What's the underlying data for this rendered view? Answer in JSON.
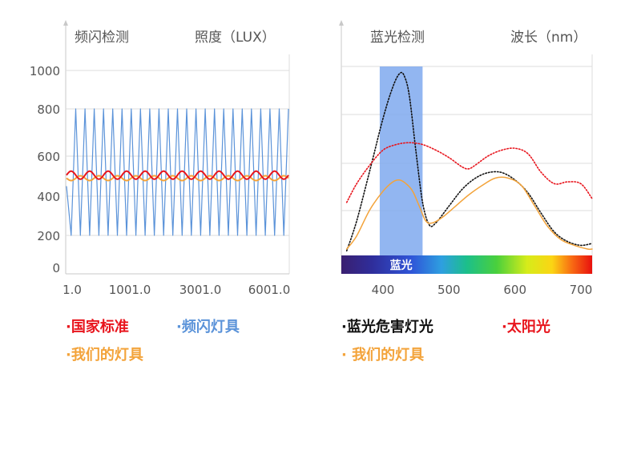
{
  "colors": {
    "standard": "#e8151d",
    "flicker_lamp": "#5b93d9",
    "our_lamp": "#f3a33a",
    "blue_hazard": "#111111",
    "sunlight": "#e8151d",
    "blue_band": "#7fa9ee",
    "axis": "#c8c8c8",
    "grid": "#dcdcdc",
    "label": "#555555"
  },
  "chart_data": [
    {
      "type": "line",
      "title": "频闪检测",
      "ylabel": "照度（LUX）",
      "x_tick_labels": [
        "1.0",
        "1001.0",
        "3001.0",
        "6001.0"
      ],
      "y_ticks": [
        0,
        200,
        400,
        600,
        800,
        1000
      ],
      "ylim": [
        0,
        1000
      ],
      "grid": true,
      "series": [
        {
          "name": "国家标准",
          "color_key": "standard",
          "style": "solid",
          "shape": "sine",
          "center": 505,
          "amplitude": 20,
          "cycles": 12
        },
        {
          "name": "频闪灯具",
          "color_key": "flicker_lamp",
          "style": "solid",
          "shape": "triangle",
          "min": 200,
          "max": 800,
          "cycles": 24
        },
        {
          "name": "我们的灯具",
          "color_key": "our_lamp",
          "style": "solid",
          "shape": "sine",
          "center": 490,
          "amplitude": 12,
          "cycles": 12
        }
      ],
      "legend": [
        {
          "label": "·国家标准",
          "color_key": "standard"
        },
        {
          "label": "·频闪灯具",
          "color_key": "flicker_lamp"
        },
        {
          "label": "·我们的灯具",
          "color_key": "our_lamp"
        }
      ]
    },
    {
      "type": "line",
      "title": "蓝光检测",
      "ylabel": "波长（nm）",
      "x_tick_labels": [
        "400",
        "500",
        "600",
        "700"
      ],
      "xlim": [
        340,
        720
      ],
      "ylim": [
        0,
        1
      ],
      "grid": true,
      "highlight_band": {
        "label": "蓝光",
        "x_start": 395,
        "x_end": 460
      },
      "spectrum_bar": true,
      "series": [
        {
          "name": "蓝光危害灯光",
          "color_key": "blue_hazard",
          "style": "dotted",
          "x": [
            345,
            360,
            380,
            400,
            415,
            425,
            432,
            440,
            450,
            460,
            470,
            480,
            500,
            520,
            540,
            560,
            580,
            600,
            620,
            640,
            660,
            680,
            700,
            720
          ],
          "y": [
            0.02,
            0.18,
            0.45,
            0.73,
            0.9,
            0.97,
            0.96,
            0.85,
            0.55,
            0.28,
            0.16,
            0.17,
            0.26,
            0.35,
            0.41,
            0.44,
            0.44,
            0.4,
            0.33,
            0.22,
            0.12,
            0.07,
            0.05,
            0.06
          ]
        },
        {
          "name": "太阳光",
          "color_key": "sunlight",
          "style": "dotted",
          "x": [
            345,
            360,
            380,
            400,
            420,
            440,
            460,
            480,
            500,
            520,
            530,
            540,
            560,
            580,
            600,
            620,
            640,
            660,
            680,
            700,
            720
          ],
          "y": [
            0.28,
            0.38,
            0.48,
            0.56,
            0.59,
            0.6,
            0.59,
            0.56,
            0.52,
            0.47,
            0.46,
            0.48,
            0.53,
            0.56,
            0.57,
            0.54,
            0.44,
            0.38,
            0.39,
            0.38,
            0.3
          ]
        },
        {
          "name": "我们的灯具",
          "color_key": "our_lamp",
          "style": "solid",
          "x": [
            345,
            360,
            380,
            400,
            415,
            425,
            435,
            445,
            455,
            465,
            475,
            490,
            510,
            530,
            550,
            570,
            590,
            610,
            630,
            650,
            670,
            690,
            710,
            720
          ],
          "y": [
            0.03,
            0.1,
            0.24,
            0.34,
            0.39,
            0.4,
            0.38,
            0.34,
            0.26,
            0.18,
            0.17,
            0.2,
            0.26,
            0.32,
            0.37,
            0.41,
            0.41,
            0.37,
            0.26,
            0.15,
            0.08,
            0.05,
            0.03,
            0.03
          ]
        }
      ],
      "legend": [
        {
          "label": "·蓝光危害灯光",
          "color_key": "blue_hazard"
        },
        {
          "label": "·太阳光",
          "color_key": "sunlight"
        },
        {
          "label": "· 我们的灯具",
          "color_key": "our_lamp"
        }
      ]
    }
  ]
}
